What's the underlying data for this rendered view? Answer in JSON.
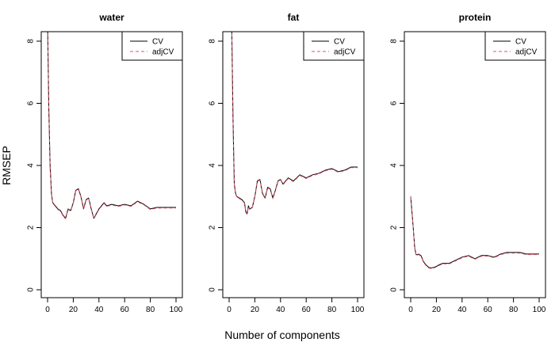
{
  "chart_data": {
    "type": "line",
    "ylabel": "RMSEP",
    "xlabel": "Number of components",
    "xlim": [
      0,
      100
    ],
    "ylim": [
      0,
      8
    ],
    "xticks": [
      0,
      20,
      40,
      60,
      80,
      100
    ],
    "yticks": [
      0,
      2,
      4,
      6,
      8
    ],
    "x_tick_labels": [
      "0",
      "20",
      "40",
      "60",
      "80",
      "100"
    ],
    "y_tick_labels": [
      "0",
      "2",
      "4",
      "6",
      "8"
    ],
    "legend": {
      "placement": "top-right",
      "entries": [
        {
          "label": "CV",
          "color": "#000000",
          "dash": "solid"
        },
        {
          "label": "adjCV",
          "color": "#DF536B",
          "dash": "dashed"
        }
      ]
    },
    "panels": [
      {
        "title": "water",
        "series": [
          {
            "name": "CV",
            "x": [
              0,
              1,
              2,
              3,
              4,
              5,
              6,
              8,
              10,
              12,
              14,
              16,
              18,
              20,
              22,
              24,
              26,
              28,
              30,
              32,
              34,
              36,
              38,
              40,
              42,
              44,
              46,
              50,
              55,
              60,
              65,
              70,
              75,
              80,
              85,
              90,
              95,
              100
            ],
            "y": [
              8.6,
              5.8,
              4.0,
              3.1,
              2.8,
              2.75,
              2.7,
              2.6,
              2.55,
              2.4,
              2.3,
              2.6,
              2.55,
              2.8,
              3.2,
              3.25,
              3.0,
              2.6,
              2.9,
              2.95,
              2.6,
              2.3,
              2.45,
              2.6,
              2.7,
              2.8,
              2.7,
              2.75,
              2.7,
              2.75,
              2.7,
              2.85,
              2.75,
              2.6,
              2.65,
              2.65,
              2.65,
              2.65
            ]
          },
          {
            "name": "adjCV",
            "x": [
              0,
              1,
              2,
              3,
              4,
              5,
              6,
              8,
              10,
              12,
              14,
              16,
              18,
              20,
              22,
              24,
              26,
              28,
              30,
              32,
              34,
              36,
              38,
              40,
              42,
              44,
              46,
              50,
              55,
              60,
              65,
              70,
              75,
              80,
              85,
              90,
              95,
              100
            ],
            "y": [
              8.6,
              5.7,
              3.95,
              3.08,
              2.78,
              2.73,
              2.68,
              2.58,
              2.53,
              2.38,
              2.28,
              2.58,
              2.53,
              2.78,
              3.18,
              3.23,
              2.98,
              2.58,
              2.88,
              2.93,
              2.58,
              2.28,
              2.43,
              2.58,
              2.68,
              2.78,
              2.68,
              2.73,
              2.68,
              2.73,
              2.68,
              2.83,
              2.73,
              2.58,
              2.63,
              2.63,
              2.63,
              2.63
            ]
          }
        ]
      },
      {
        "title": "fat",
        "series": [
          {
            "name": "CV",
            "x": [
              2,
              3,
              4,
              5,
              6,
              8,
              10,
              12,
              13,
              14,
              15,
              16,
              18,
              20,
              22,
              24,
              26,
              28,
              30,
              32,
              34,
              36,
              38,
              40,
              42,
              44,
              46,
              48,
              50,
              55,
              60,
              65,
              70,
              75,
              80,
              85,
              90,
              95,
              100
            ],
            "y": [
              8.6,
              5.5,
              3.4,
              3.1,
              3.0,
              2.95,
              2.9,
              2.8,
              2.5,
              2.45,
              2.7,
              2.6,
              2.65,
              3.0,
              3.5,
              3.55,
              3.1,
              2.95,
              3.3,
              3.25,
              2.95,
              3.2,
              3.5,
              3.55,
              3.4,
              3.5,
              3.6,
              3.55,
              3.5,
              3.7,
              3.6,
              3.7,
              3.75,
              3.85,
              3.9,
              3.8,
              3.85,
              3.95,
              3.95
            ]
          },
          {
            "name": "adjCV",
            "x": [
              2,
              3,
              4,
              5,
              6,
              8,
              10,
              12,
              13,
              14,
              15,
              16,
              18,
              20,
              22,
              24,
              26,
              28,
              30,
              32,
              34,
              36,
              38,
              40,
              42,
              44,
              46,
              48,
              50,
              55,
              60,
              65,
              70,
              75,
              80,
              85,
              90,
              95,
              100
            ],
            "y": [
              8.6,
              5.4,
              3.38,
              3.08,
              2.98,
              2.93,
              2.88,
              2.78,
              2.48,
              2.43,
              2.68,
              2.58,
              2.63,
              2.98,
              3.48,
              3.53,
              3.08,
              2.93,
              3.28,
              3.23,
              2.93,
              3.18,
              3.48,
              3.53,
              3.38,
              3.48,
              3.58,
              3.53,
              3.48,
              3.68,
              3.58,
              3.68,
              3.73,
              3.83,
              3.88,
              3.78,
              3.83,
              3.93,
              3.93
            ]
          }
        ]
      },
      {
        "title": "protein",
        "series": [
          {
            "name": "CV",
            "x": [
              0,
              1,
              2,
              3,
              4,
              5,
              6,
              8,
              10,
              12,
              14,
              16,
              18,
              20,
              22,
              25,
              30,
              35,
              40,
              45,
              50,
              55,
              60,
              65,
              70,
              75,
              80,
              85,
              90,
              95,
              100
            ],
            "y": [
              3.0,
              2.5,
              2.0,
              1.4,
              1.15,
              1.12,
              1.15,
              1.1,
              0.9,
              0.8,
              0.72,
              0.7,
              0.72,
              0.75,
              0.8,
              0.85,
              0.85,
              0.95,
              1.05,
              1.1,
              1.0,
              1.1,
              1.1,
              1.05,
              1.15,
              1.2,
              1.2,
              1.2,
              1.15,
              1.15,
              1.15
            ]
          },
          {
            "name": "adjCV",
            "x": [
              0,
              1,
              2,
              3,
              4,
              5,
              6,
              8,
              10,
              12,
              14,
              16,
              18,
              20,
              22,
              25,
              30,
              35,
              40,
              45,
              50,
              55,
              60,
              65,
              70,
              75,
              80,
              85,
              90,
              95,
              100
            ],
            "y": [
              2.98,
              2.48,
              1.98,
              1.38,
              1.13,
              1.1,
              1.13,
              1.08,
              0.88,
              0.78,
              0.7,
              0.68,
              0.7,
              0.73,
              0.78,
              0.83,
              0.83,
              0.93,
              1.03,
              1.08,
              0.98,
              1.08,
              1.08,
              1.03,
              1.13,
              1.18,
              1.18,
              1.18,
              1.13,
              1.13,
              1.13
            ]
          }
        ]
      }
    ]
  }
}
